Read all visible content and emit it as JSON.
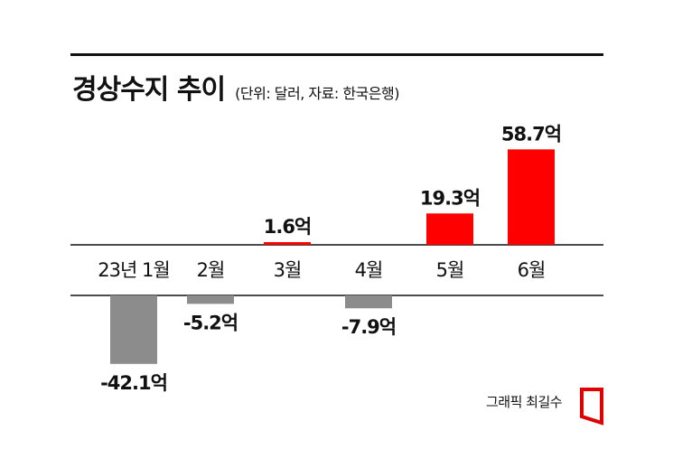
{
  "header": {
    "title": "경상수지 추이",
    "subtitle": "(단위: 달러, 자료: 한국은행)"
  },
  "credit": "그래픽 최길수",
  "colors": {
    "positive": "#ff0000",
    "negative": "#8c8c8c",
    "axis": "#111111"
  },
  "chart_data": {
    "type": "bar",
    "title": "경상수지 추이",
    "categories": [
      "23년 1월",
      "2월",
      "3월",
      "4월",
      "5월",
      "6월"
    ],
    "values": [
      -42.1,
      -5.2,
      1.6,
      -7.9,
      19.3,
      58.7
    ],
    "value_labels": [
      "-42.1억",
      "-5.2억",
      "1.6억",
      "-7.9억",
      "19.3억",
      "58.7억"
    ],
    "unit": "억 달러",
    "grid": false,
    "legend": "none"
  }
}
